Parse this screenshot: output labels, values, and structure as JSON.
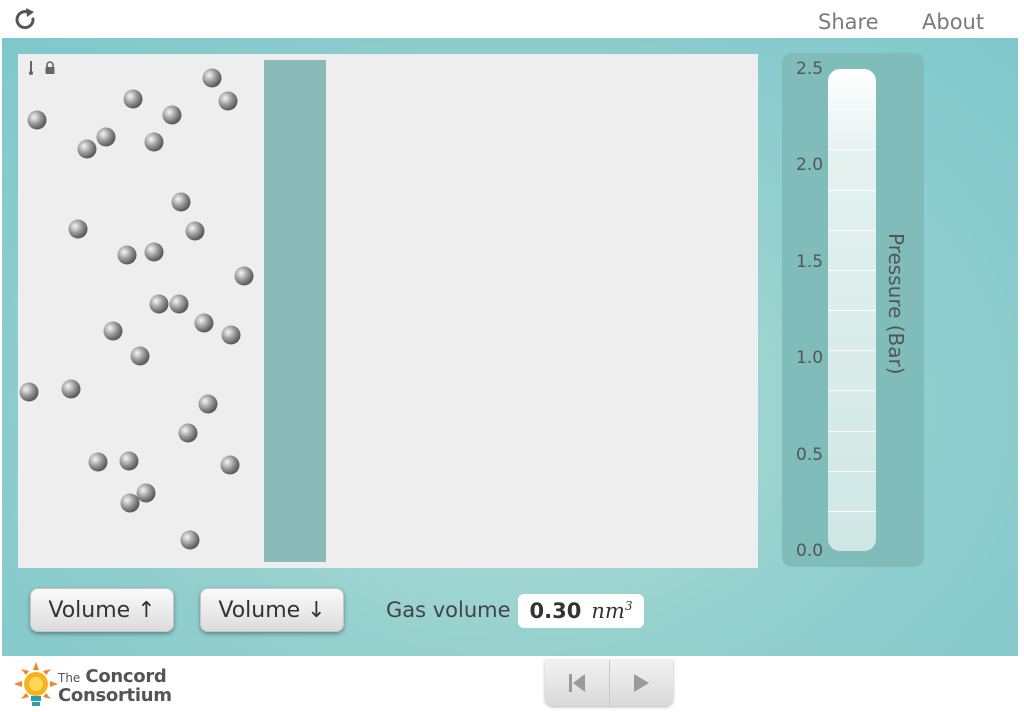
{
  "header": {
    "share_label": "Share",
    "about_label": "About",
    "reload_icon": "reload-icon"
  },
  "simulation": {
    "container_icons": [
      "thermometer-icon",
      "lock-icon"
    ],
    "molecule_count": 33,
    "piston_color": "#8abbb8",
    "background_color": "#eeeeee"
  },
  "gauge": {
    "title": "Pressure (Bar)",
    "ticks": [
      "0.0",
      "0.5",
      "1.0",
      "1.5",
      "2.0",
      "2.5"
    ],
    "range": [
      0.0,
      2.5
    ],
    "level": 2.3
  },
  "controls": {
    "volume_up_label": "Volume ↑",
    "volume_down_label": "Volume ↓",
    "gas_volume_label": "Gas volume",
    "gas_volume_value": "0.30",
    "gas_volume_unit": "nm",
    "gas_volume_exponent": "3"
  },
  "footer": {
    "logo_the": "The",
    "logo_line1": "Concord",
    "logo_line2": "Consortium",
    "playback": [
      "reset-icon",
      "play-icon"
    ]
  },
  "colors": {
    "panel_start": "#b6e0dc",
    "panel_end": "#7fc7cc",
    "logo_orange": "#f0852b"
  }
}
